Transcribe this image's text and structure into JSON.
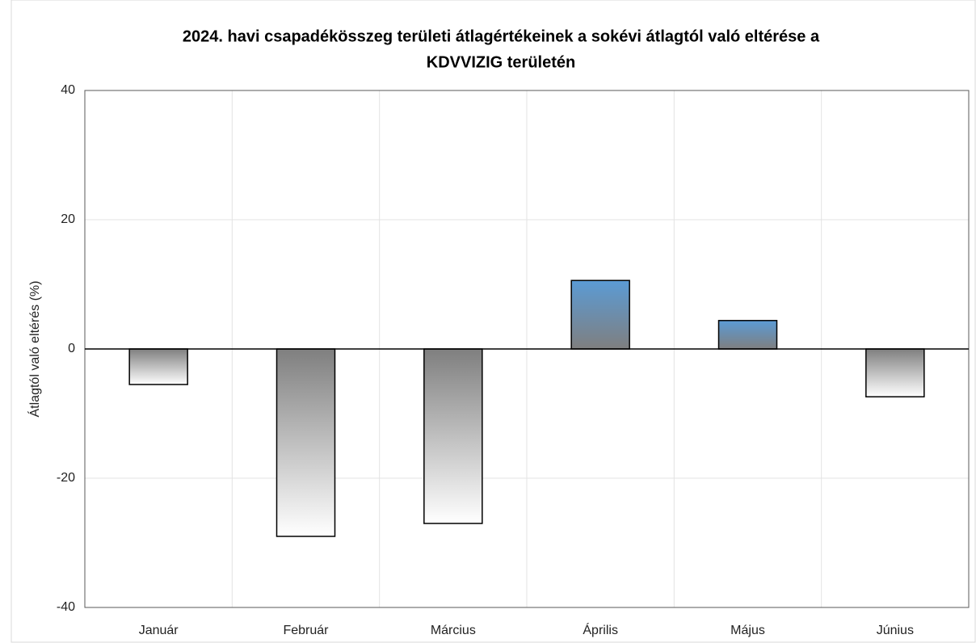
{
  "chart_data": {
    "type": "bar",
    "title": [
      "2024. havi csapadékösszeg területi átlagértékeinek a sokévi átlagtól való eltérése a",
      "KDVVIZIG területén"
    ],
    "y_label": "Átlagtól való eltérés (%)",
    "categories": [
      "Január",
      "Február",
      "Március",
      "Április",
      "Május",
      "Június"
    ],
    "values": [
      -5.5,
      -29,
      -27,
      10.6,
      4.4,
      -7.4
    ],
    "ylim": [
      -40,
      40
    ],
    "yticks": [
      -40,
      -20,
      0,
      20,
      40
    ],
    "grid": true
  }
}
